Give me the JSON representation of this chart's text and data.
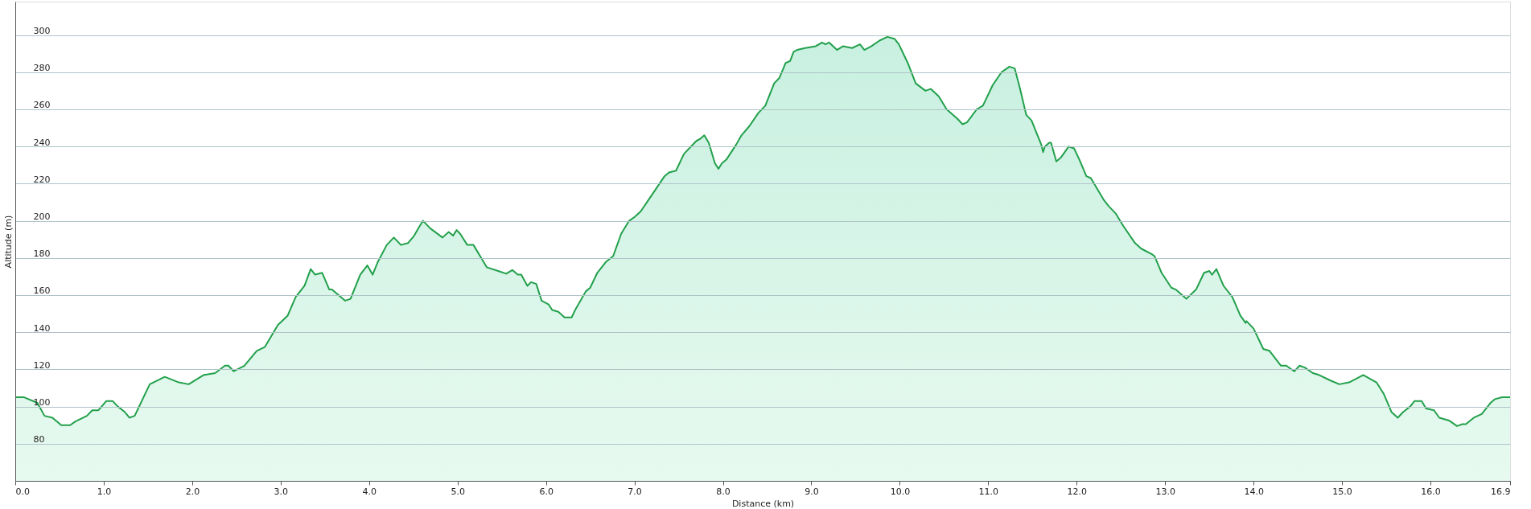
{
  "chart_data": {
    "type": "area",
    "xlabel": "Distance (km)",
    "ylabel": "Altitude (m)",
    "xlim": [
      0,
      16.9
    ],
    "ylim": [
      60,
      318
    ],
    "xticks": [
      {
        "value": 0,
        "label": "0.0"
      },
      {
        "value": 1,
        "label": "1.0"
      },
      {
        "value": 2,
        "label": "2.0"
      },
      {
        "value": 3,
        "label": "3.0"
      },
      {
        "value": 4,
        "label": "4.0"
      },
      {
        "value": 5,
        "label": "5.0"
      },
      {
        "value": 6,
        "label": "6.0"
      },
      {
        "value": 7,
        "label": "7.0"
      },
      {
        "value": 8,
        "label": "8.0"
      },
      {
        "value": 9,
        "label": "9.0"
      },
      {
        "value": 10,
        "label": "10.0"
      },
      {
        "value": 11,
        "label": "11.0"
      },
      {
        "value": 12,
        "label": "12.0"
      },
      {
        "value": 13,
        "label": "13.0"
      },
      {
        "value": 14,
        "label": "14.0"
      },
      {
        "value": 15,
        "label": "15.0"
      },
      {
        "value": 16,
        "label": "16.0"
      },
      16.9
    ],
    "yticks": [
      80,
      100,
      120,
      140,
      160,
      180,
      200,
      220,
      240,
      260,
      280,
      300
    ],
    "grid": "y",
    "marker": "none",
    "line_style": "solid",
    "x": [
      0,
      0.1,
      0.25,
      0.33,
      0.42,
      0.52,
      0.62,
      0.68,
      0.81,
      0.87,
      0.94,
      1.03,
      1.1,
      1.16,
      1.24,
      1.29,
      1.35,
      1.52,
      1.69,
      1.85,
      1.96,
      2.13,
      2.26,
      2.37,
      2.41,
      2.47,
      2.59,
      2.73,
      2.82,
      2.97,
      3.08,
      3.17,
      3.27,
      3.34,
      3.39,
      3.47,
      3.55,
      3.58,
      3.73,
      3.79,
      3.9,
      3.98,
      4.04,
      4.1,
      4.2,
      4.28,
      4.36,
      4.44,
      4.51,
      4.57,
      4.61,
      4.69,
      4.83,
      4.9,
      4.95,
      4.99,
      5.03,
      5.11,
      5.18,
      5.33,
      5.46,
      5.55,
      5.62,
      5.68,
      5.72,
      5.79,
      5.83,
      5.89,
      5.95,
      6.03,
      6.07,
      6.14,
      6.21,
      6.29,
      6.33,
      6.45,
      6.5,
      6.58,
      6.68,
      6.76,
      6.85,
      6.94,
      7.0,
      7.07,
      7.17,
      7.34,
      7.39,
      7.47,
      7.56,
      7.7,
      7.74,
      7.79,
      7.84,
      7.91,
      7.95,
      7.99,
      8.04,
      8.15,
      8.21,
      8.3,
      8.4,
      8.48,
      8.58,
      8.64,
      8.71,
      8.76,
      8.8,
      8.84,
      8.93,
      9.05,
      9.12,
      9.16,
      9.2,
      9.29,
      9.36,
      9.46,
      9.55,
      9.6,
      9.68,
      9.77,
      9.86,
      9.94,
      9.99,
      10.09,
      10.18,
      10.29,
      10.35,
      10.44,
      10.53,
      10.65,
      10.71,
      10.76,
      10.87,
      10.94,
      11.05,
      11.15,
      11.24,
      11.3,
      11.36,
      11.43,
      11.49,
      11.54,
      11.6,
      11.62,
      11.64,
      11.69,
      11.71,
      11.77,
      11.82,
      11.88,
      11.91,
      11.97,
      12.03,
      12.11,
      12.16,
      12.31,
      12.36,
      12.44,
      12.53,
      12.66,
      12.73,
      12.85,
      12.88,
      12.96,
      13.07,
      13.12,
      13.24,
      13.35,
      13.44,
      13.5,
      13.53,
      13.58,
      13.66,
      13.76,
      13.85,
      13.91,
      13.92,
      14.0,
      14.11,
      14.18,
      14.31,
      14.37,
      14.46,
      14.52,
      14.58,
      14.67,
      14.74,
      14.87,
      14.97,
      15.08,
      15.24,
      15.39,
      15.47,
      15.56,
      15.63,
      15.69,
      15.77,
      15.82,
      15.9,
      15.95,
      16.04,
      16.1,
      16.21,
      16.3,
      16.36,
      16.4,
      16.49,
      16.58,
      16.68,
      16.73,
      16.81,
      16.9
    ],
    "series": [
      {
        "color": "#22a04b",
        "values": [
          105,
          105,
          102,
          95,
          94,
          90,
          90,
          92,
          95,
          98,
          98,
          103,
          103,
          100,
          97,
          94,
          95,
          112,
          116,
          113,
          112,
          117,
          118,
          122,
          122,
          119,
          122,
          130,
          132,
          144,
          149,
          159,
          165,
          174,
          171,
          172,
          163,
          163,
          157,
          158,
          171,
          176,
          171,
          178,
          187,
          191,
          187,
          188,
          192,
          197,
          200,
          196,
          191,
          194,
          192,
          195,
          193,
          187,
          187,
          175,
          173,
          171.5,
          173.5,
          171,
          171,
          165,
          167,
          166,
          157,
          155,
          152,
          151,
          148,
          148,
          152,
          162,
          164,
          172,
          178,
          181,
          193,
          200,
          202,
          205,
          212,
          224,
          226,
          227,
          236,
          243,
          244,
          246,
          242,
          231,
          228,
          231,
          233,
          241,
          246,
          251,
          258,
          262,
          274,
          277,
          285,
          286,
          291,
          292,
          293,
          294,
          296,
          295,
          296,
          292,
          294,
          293,
          295,
          292,
          294,
          297,
          299,
          298,
          295,
          285,
          274,
          270,
          271,
          267,
          260,
          255,
          252,
          253,
          260,
          262,
          273,
          280,
          283,
          282,
          271,
          257,
          254,
          248,
          241,
          237,
          240,
          242,
          242,
          232,
          234,
          238,
          240,
          239,
          233,
          224,
          223,
          211,
          208,
          204,
          197,
          188,
          185,
          182,
          181,
          172,
          164,
          163,
          158,
          163,
          172,
          173,
          171,
          174,
          165,
          159,
          149,
          145,
          146,
          142,
          131,
          130,
          122,
          122,
          119,
          122,
          121,
          118,
          117,
          114,
          112,
          113,
          117,
          113,
          107,
          97,
          94,
          97,
          100,
          103,
          103,
          99,
          98,
          94,
          92.5,
          89.5,
          90.5,
          90.5,
          94,
          96,
          102,
          104,
          105,
          105
        ]
      }
    ]
  }
}
